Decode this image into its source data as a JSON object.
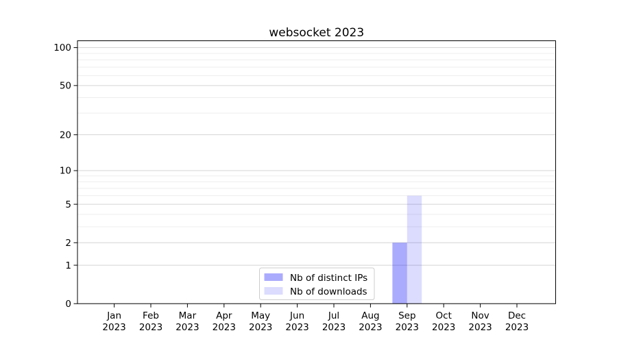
{
  "chart_data": {
    "type": "bar",
    "title": "websocket 2023",
    "categories": [
      "Jan 2023",
      "Feb 2023",
      "Mar 2023",
      "Apr 2023",
      "May 2023",
      "Jun 2023",
      "Jul 2023",
      "Aug 2023",
      "Sep 2023",
      "Oct 2023",
      "Nov 2023",
      "Dec 2023"
    ],
    "series": [
      {
        "name": "Nb of distinct IPs",
        "values": [
          0,
          0,
          0,
          0,
          0,
          0,
          0,
          0,
          2,
          0,
          0,
          0
        ],
        "color": "rgba(35,35,250,0.38)"
      },
      {
        "name": "Nb of downloads",
        "values": [
          0,
          0,
          0,
          0,
          0,
          0,
          0,
          0,
          6,
          0,
          0,
          0
        ],
        "color": "rgba(35,35,250,0.16)"
      }
    ],
    "xlabel": "",
    "ylabel": "",
    "yscale": "log1p",
    "ylim": [
      0,
      100
    ],
    "y_axis": {
      "tick_values": [
        0,
        1,
        2,
        5,
        10,
        20,
        50,
        100
      ],
      "tick_labels": [
        "0",
        "1",
        "2",
        "5",
        "10",
        "20",
        "50",
        "100"
      ],
      "minor_tick_values": [
        3,
        4,
        6,
        7,
        8,
        9,
        30,
        40,
        60,
        70,
        80,
        90
      ]
    },
    "grid": true,
    "legend": {
      "position": "lower center"
    },
    "colors": {
      "background": "#ffffff",
      "axis": "#000000",
      "grid_major": "#d4d4d4",
      "grid_minor": "#ededed",
      "legend_border": "#cccccc",
      "legend_fill": "#ffffff"
    }
  }
}
